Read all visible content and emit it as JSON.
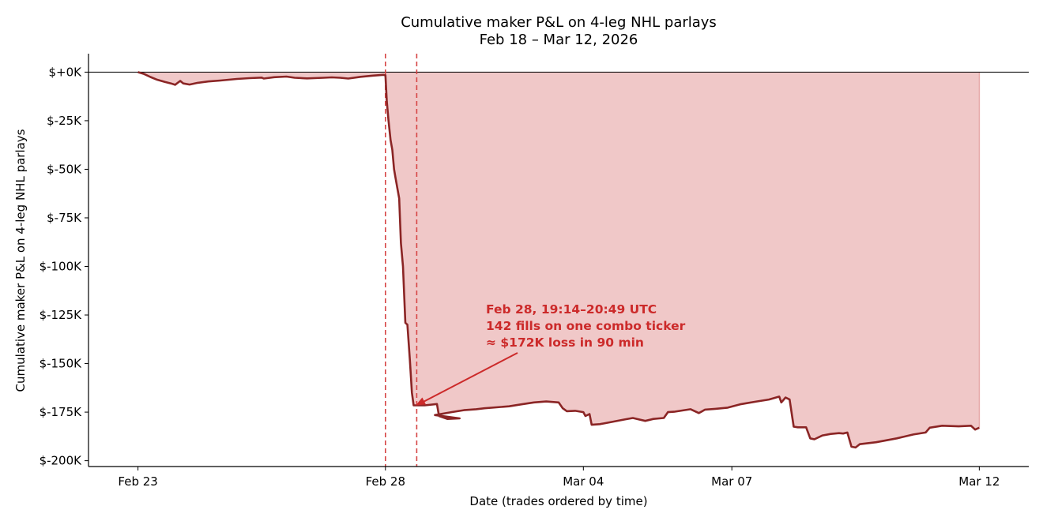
{
  "chart_data": {
    "type": "area",
    "title": "Cumulative maker P&L on 4-leg NHL parlays",
    "subtitle": "Feb 18 – Mar 12, 2026",
    "xlabel": "Date (trades ordered by time)",
    "ylabel": "Cumulative maker P&L on 4-leg NHL parlays",
    "xlim": [
      "2026-02-22 00:00",
      "2026-03-13 00:00"
    ],
    "ylim": [
      -203000,
      9500
    ],
    "x_ticks": [
      {
        "value": "2026-02-23",
        "label": "Feb 23"
      },
      {
        "value": "2026-02-28",
        "label": "Feb 28"
      },
      {
        "value": "2026-03-04",
        "label": "Mar 04"
      },
      {
        "value": "2026-03-07",
        "label": "Mar 07"
      },
      {
        "value": "2026-03-12",
        "label": "Mar 12"
      }
    ],
    "y_ticks": [
      {
        "value": 0,
        "label": "$+0K"
      },
      {
        "value": -25000,
        "label": "$-25K"
      },
      {
        "value": -50000,
        "label": "$-50K"
      },
      {
        "value": -75000,
        "label": "$-75K"
      },
      {
        "value": -100000,
        "label": "$-100K"
      },
      {
        "value": -125000,
        "label": "$-125K"
      },
      {
        "value": -150000,
        "label": "$-150K"
      },
      {
        "value": -175000,
        "label": "$-175K"
      },
      {
        "value": -200000,
        "label": "$-200K"
      }
    ],
    "grid": false,
    "line_color": "#8b2525",
    "fill_color": "#f0c8c8",
    "marker_color": "#d64545",
    "reference_line": {
      "y": 0,
      "color": "#000000"
    },
    "vertical_markers": [
      "2026-02-28 00:00",
      "2026-02-28 15:10"
    ],
    "annotation": {
      "lines": [
        "Feb 28, 19:14–20:49 UTC",
        "142 fills on one combo ticker",
        "≈ $172K loss in 90 min"
      ],
      "color": "#cc2a2a",
      "arrow_target": {
        "x": "2026-02-28 14:40",
        "y": -171500
      }
    },
    "series": [
      {
        "points": [
          [
            "2026-02-23 00:00",
            0
          ],
          [
            "2026-02-23 03:00",
            -1000
          ],
          [
            "2026-02-23 06:00",
            -2500
          ],
          [
            "2026-02-23 09:00",
            -3800
          ],
          [
            "2026-02-23 13:00",
            -5000
          ],
          [
            "2026-02-23 16:00",
            -5800
          ],
          [
            "2026-02-23 18:00",
            -6500
          ],
          [
            "2026-02-23 20:30",
            -4500
          ],
          [
            "2026-02-23 22:00",
            -5800
          ],
          [
            "2026-02-24 01:00",
            -6400
          ],
          [
            "2026-02-24 05:00",
            -5500
          ],
          [
            "2026-02-24 10:00",
            -4800
          ],
          [
            "2026-02-24 16:00",
            -4300
          ],
          [
            "2026-02-25 00:00",
            -3500
          ],
          [
            "2026-02-25 06:00",
            -3100
          ],
          [
            "2026-02-25 12:00",
            -2800
          ],
          [
            "2026-02-25 13:00",
            -3300
          ],
          [
            "2026-02-25 18:00",
            -2600
          ],
          [
            "2026-02-26 00:00",
            -2300
          ],
          [
            "2026-02-26 04:00",
            -2900
          ],
          [
            "2026-02-26 10:00",
            -3200
          ],
          [
            "2026-02-26 18:00",
            -2900
          ],
          [
            "2026-02-26 22:00",
            -2700
          ],
          [
            "2026-02-27 02:00",
            -2900
          ],
          [
            "2026-02-27 06:00",
            -3300
          ],
          [
            "2026-02-27 12:00",
            -2400
          ],
          [
            "2026-02-27 18:00",
            -1800
          ],
          [
            "2026-02-27 23:00",
            -1400
          ],
          [
            "2026-02-28 00:00",
            -1600
          ],
          [
            "2026-02-28 00:40",
            -15000
          ],
          [
            "2026-02-28 01:30",
            -25000
          ],
          [
            "2026-02-28 02:30",
            -35000
          ],
          [
            "2026-02-28 03:20",
            -40000
          ],
          [
            "2026-02-28 04:10",
            -50000
          ],
          [
            "2026-02-28 05:00",
            -55000
          ],
          [
            "2026-02-28 06:40",
            -65000
          ],
          [
            "2026-02-28 07:30",
            -88000
          ],
          [
            "2026-02-28 08:30",
            -100000
          ],
          [
            "2026-02-28 09:40",
            -129000
          ],
          [
            "2026-02-28 10:40",
            -130000
          ],
          [
            "2026-02-28 11:50",
            -148000
          ],
          [
            "2026-02-28 12:50",
            -165000
          ],
          [
            "2026-02-28 13:40",
            -171500
          ],
          [
            "2026-02-28 16:00",
            -171500
          ],
          [
            "2026-02-28 19:00",
            -171500
          ],
          [
            "2026-02-29 01:00",
            -170800
          ],
          [
            "2026-02-29 02:00",
            -177000
          ],
          [
            "2026-02-29 06:00",
            -178500
          ],
          [
            "2026-02-29 12:00",
            -178200
          ],
          [
            "2026-03-01 00:00",
            -176500
          ],
          [
            "2026-03-01 08:00",
            -175000
          ],
          [
            "2026-03-01 14:00",
            -174000
          ],
          [
            "2026-03-01 20:00",
            -173500
          ],
          [
            "2026-03-02 00:00",
            -173000
          ],
          [
            "2026-03-02 12:00",
            -172000
          ],
          [
            "2026-03-02 18:00",
            -171000
          ],
          [
            "2026-03-03 00:00",
            -170000
          ],
          [
            "2026-03-03 06:00",
            -169500
          ],
          [
            "2026-03-03 12:00",
            -170000
          ],
          [
            "2026-03-03 14:00",
            -173000
          ],
          [
            "2026-03-03 16:00",
            -174500
          ],
          [
            "2026-03-03 20:00",
            -174300
          ],
          [
            "2026-03-04 00:00",
            -175000
          ],
          [
            "2026-03-04 01:00",
            -177000
          ],
          [
            "2026-03-04 03:00",
            -176000
          ],
          [
            "2026-03-04 04:00",
            -181500
          ],
          [
            "2026-03-04 08:00",
            -181200
          ],
          [
            "2026-03-04 14:00",
            -180000
          ],
          [
            "2026-03-04 20:00",
            -178800
          ],
          [
            "2026-03-05 00:00",
            -178000
          ],
          [
            "2026-03-05 06:00",
            -179500
          ],
          [
            "2026-03-05 10:00",
            -178500
          ],
          [
            "2026-03-05 15:00",
            -178000
          ],
          [
            "2026-03-05 17:00",
            -175000
          ],
          [
            "2026-03-05 20:00",
            -174800
          ],
          [
            "2026-03-06 04:00",
            -173500
          ],
          [
            "2026-03-06 08:00",
            -175500
          ],
          [
            "2026-03-06 11:00",
            -173700
          ],
          [
            "2026-03-06 16:00",
            -173300
          ],
          [
            "2026-03-06 22:00",
            -172700
          ],
          [
            "2026-03-07 04:00",
            -171000
          ],
          [
            "2026-03-07 12:00",
            -169500
          ],
          [
            "2026-03-07 18:00",
            -168500
          ],
          [
            "2026-03-07 23:00",
            -167000
          ],
          [
            "2026-03-08 00:00",
            -170000
          ],
          [
            "2026-03-08 02:00",
            -167500
          ],
          [
            "2026-03-08 04:00",
            -168500
          ],
          [
            "2026-03-08 06:00",
            -182500
          ],
          [
            "2026-03-08 08:00",
            -182800
          ],
          [
            "2026-03-08 12:00",
            -182800
          ],
          [
            "2026-03-08 14:00",
            -188500
          ],
          [
            "2026-03-08 16:00",
            -189000
          ],
          [
            "2026-03-08 20:00",
            -187000
          ],
          [
            "2026-03-09 00:00",
            -186200
          ],
          [
            "2026-03-09 04:00",
            -185800
          ],
          [
            "2026-03-09 06:00",
            -186000
          ],
          [
            "2026-03-09 08:00",
            -185500
          ],
          [
            "2026-03-09 10:00",
            -192800
          ],
          [
            "2026-03-09 12:00",
            -193200
          ],
          [
            "2026-03-09 14:00",
            -191500
          ],
          [
            "2026-03-09 22:00",
            -190500
          ],
          [
            "2026-03-10 08:00",
            -188500
          ],
          [
            "2026-03-10 16:00",
            -186500
          ],
          [
            "2026-03-10 22:00",
            -185500
          ],
          [
            "2026-03-11 00:00",
            -183000
          ],
          [
            "2026-03-11 06:00",
            -182000
          ],
          [
            "2026-03-11 14:00",
            -182300
          ],
          [
            "2026-03-11 20:00",
            -182000
          ],
          [
            "2026-03-11 22:00",
            -184000
          ],
          [
            "2026-03-12 00:00",
            -183000
          ]
        ]
      }
    ]
  }
}
